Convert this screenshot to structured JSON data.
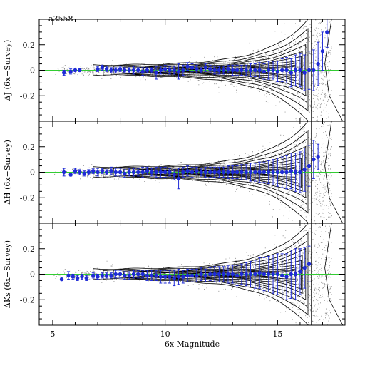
{
  "chart_data": [
    {
      "type": "scatter",
      "id": "panel-j",
      "title": "a3558",
      "ylabel": "ΔJ (6x−Survey)",
      "xlim": [
        4.4,
        18
      ],
      "ylim": [
        -0.4,
        0.4
      ],
      "yticks": [
        -0.2,
        0,
        0.2
      ],
      "grid": false,
      "reference_line": {
        "y": 0,
        "color": "#33cc33"
      },
      "series": [
        {
          "kind": "binned-mean-with-error",
          "color": "#1f2bd6",
          "x": [
            5.5,
            5.8,
            6.0,
            6.2,
            7.0,
            7.2,
            7.4,
            7.6,
            7.8,
            8.0,
            8.2,
            8.4,
            8.6,
            8.8,
            9.0,
            9.2,
            9.4,
            9.6,
            9.8,
            10.0,
            10.2,
            10.4,
            10.6,
            10.8,
            11.0,
            11.2,
            11.4,
            11.6,
            11.8,
            12.0,
            12.2,
            12.4,
            12.6,
            12.8,
            13.0,
            13.2,
            13.4,
            13.6,
            13.8,
            14.0,
            14.2,
            14.4,
            14.6,
            14.8,
            15.0,
            15.2,
            15.4,
            15.6,
            15.8,
            16.0,
            16.2,
            16.4,
            16.6,
            16.8,
            17.0,
            17.2
          ],
          "y": [
            -0.02,
            -0.01,
            0.0,
            0.0,
            0.01,
            0.02,
            0.01,
            0.0,
            0.0,
            0.01,
            0.0,
            0.0,
            0.0,
            0.0,
            -0.01,
            0.0,
            0.0,
            -0.02,
            0.0,
            0.01,
            0.0,
            0.0,
            -0.01,
            0.0,
            0.03,
            0.02,
            0.01,
            0.0,
            0.02,
            0.01,
            0.0,
            0.0,
            0.0,
            0.01,
            0.0,
            0.0,
            0.0,
            0.0,
            0.0,
            0.0,
            0.0,
            -0.01,
            0.0,
            0.0,
            -0.01,
            0.0,
            0.0,
            -0.02,
            0.0,
            0.0,
            -0.02,
            0.0,
            0.0,
            0.05,
            0.15,
            0.3
          ],
          "err": [
            0.02,
            0.02,
            0.01,
            0.01,
            0.02,
            0.02,
            0.02,
            0.02,
            0.02,
            0.02,
            0.02,
            0.02,
            0.03,
            0.02,
            0.03,
            0.02,
            0.02,
            0.05,
            0.03,
            0.03,
            0.03,
            0.03,
            0.06,
            0.04,
            0.03,
            0.03,
            0.03,
            0.02,
            0.03,
            0.03,
            0.03,
            0.03,
            0.03,
            0.03,
            0.04,
            0.04,
            0.04,
            0.04,
            0.05,
            0.05,
            0.06,
            0.06,
            0.07,
            0.07,
            0.08,
            0.09,
            0.1,
            0.11,
            0.12,
            0.13,
            0.14,
            0.15,
            0.16,
            0.17,
            0.15,
            0.12
          ]
        }
      ]
    },
    {
      "type": "scatter",
      "id": "panel-h",
      "ylabel": "ΔH (6x−Survey)",
      "xlim": [
        4.4,
        18
      ],
      "ylim": [
        -0.4,
        0.4
      ],
      "yticks": [
        -0.2,
        0,
        0.2
      ],
      "grid": false,
      "reference_line": {
        "y": 0,
        "color": "#33cc33"
      },
      "series": [
        {
          "kind": "binned-mean-with-error",
          "color": "#1f2bd6",
          "x": [
            5.5,
            5.8,
            6.0,
            6.2,
            6.4,
            6.6,
            6.8,
            7.0,
            7.2,
            7.4,
            7.6,
            7.8,
            8.0,
            8.2,
            8.4,
            8.6,
            8.8,
            9.0,
            9.2,
            9.4,
            9.6,
            9.8,
            10.0,
            10.2,
            10.4,
            10.6,
            10.8,
            11.0,
            11.2,
            11.4,
            11.6,
            11.8,
            12.0,
            12.2,
            12.4,
            12.6,
            12.8,
            13.0,
            13.2,
            13.4,
            13.6,
            13.8,
            14.0,
            14.2,
            14.4,
            14.6,
            14.8,
            15.0,
            15.2,
            15.4,
            15.6,
            15.8,
            16.0,
            16.2,
            16.4,
            16.6,
            16.8
          ],
          "y": [
            0.0,
            -0.02,
            0.01,
            0.0,
            -0.01,
            0.0,
            0.01,
            0.0,
            0.01,
            0.0,
            0.01,
            0.0,
            0.0,
            -0.01,
            0.0,
            0.0,
            0.0,
            0.0,
            0.01,
            0.0,
            0.0,
            0.0,
            0.0,
            0.0,
            -0.02,
            -0.05,
            0.0,
            0.01,
            0.0,
            0.01,
            0.0,
            0.0,
            0.0,
            0.0,
            0.0,
            0.0,
            0.0,
            0.0,
            0.0,
            0.0,
            0.0,
            0.0,
            0.0,
            0.0,
            0.0,
            0.0,
            0.0,
            0.0,
            0.0,
            0.0,
            0.01,
            0.0,
            0.0,
            0.02,
            0.05,
            0.1,
            0.12
          ],
          "err": [
            0.03,
            0.01,
            0.02,
            0.02,
            0.02,
            0.02,
            0.02,
            0.03,
            0.02,
            0.02,
            0.03,
            0.03,
            0.03,
            0.03,
            0.03,
            0.03,
            0.03,
            0.04,
            0.03,
            0.03,
            0.04,
            0.04,
            0.04,
            0.03,
            0.04,
            0.08,
            0.04,
            0.04,
            0.04,
            0.03,
            0.03,
            0.04,
            0.04,
            0.04,
            0.04,
            0.04,
            0.05,
            0.05,
            0.05,
            0.06,
            0.06,
            0.07,
            0.07,
            0.08,
            0.08,
            0.09,
            0.1,
            0.11,
            0.12,
            0.13,
            0.14,
            0.15,
            0.16,
            0.17,
            0.16,
            0.15,
            0.1
          ]
        }
      ]
    },
    {
      "type": "scatter",
      "id": "panel-ks",
      "ylabel": "ΔKs (6x−Survey)",
      "xlabel": "6x Magnitude",
      "xlim": [
        4.4,
        18
      ],
      "ylim": [
        -0.4,
        0.4
      ],
      "xticks": [
        5,
        10,
        15
      ],
      "yticks": [
        -0.2,
        0,
        0.2
      ],
      "grid": false,
      "reference_line": {
        "y": 0,
        "color": "#33cc33"
      },
      "series": [
        {
          "kind": "binned-mean-with-error",
          "color": "#1f2bd6",
          "x": [
            5.4,
            5.7,
            5.9,
            6.1,
            6.3,
            6.5,
            6.8,
            7.0,
            7.2,
            7.4,
            7.6,
            7.8,
            8.0,
            8.2,
            8.4,
            8.6,
            8.8,
            9.0,
            9.2,
            9.4,
            9.6,
            9.8,
            10.0,
            10.2,
            10.4,
            10.6,
            10.8,
            11.0,
            11.2,
            11.4,
            11.6,
            11.8,
            12.0,
            12.2,
            12.4,
            12.6,
            12.8,
            13.0,
            13.2,
            13.4,
            13.6,
            13.8,
            14.0,
            14.2,
            14.4,
            14.6,
            14.8,
            15.0,
            15.2,
            15.4,
            15.6,
            15.8,
            16.0,
            16.2,
            16.4
          ],
          "y": [
            -0.04,
            -0.01,
            -0.02,
            -0.03,
            -0.02,
            -0.03,
            -0.01,
            -0.02,
            -0.01,
            -0.01,
            -0.01,
            0.0,
            0.0,
            -0.01,
            -0.01,
            0.0,
            0.0,
            0.0,
            -0.01,
            -0.01,
            -0.01,
            -0.02,
            -0.02,
            -0.02,
            -0.03,
            -0.02,
            -0.02,
            -0.01,
            -0.01,
            -0.01,
            0.0,
            -0.01,
            0.0,
            0.0,
            0.0,
            0.0,
            0.0,
            0.0,
            -0.01,
            0.0,
            0.0,
            0.0,
            0.0,
            0.01,
            0.0,
            0.0,
            0.0,
            0.0,
            -0.01,
            -0.02,
            0.0,
            0.0,
            0.02,
            0.05,
            0.08
          ],
          "err": [
            0.01,
            0.03,
            0.02,
            0.02,
            0.02,
            0.02,
            0.02,
            0.02,
            0.02,
            0.02,
            0.02,
            0.03,
            0.03,
            0.03,
            0.03,
            0.03,
            0.03,
            0.03,
            0.04,
            0.04,
            0.04,
            0.05,
            0.05,
            0.05,
            0.06,
            0.06,
            0.05,
            0.05,
            0.05,
            0.05,
            0.05,
            0.05,
            0.05,
            0.06,
            0.06,
            0.06,
            0.07,
            0.07,
            0.08,
            0.08,
            0.09,
            0.1,
            0.11,
            0.12,
            0.13,
            0.14,
            0.15,
            0.16,
            0.17,
            0.18,
            0.19,
            0.2,
            0.18,
            0.16,
            0.14
          ]
        }
      ]
    }
  ]
}
